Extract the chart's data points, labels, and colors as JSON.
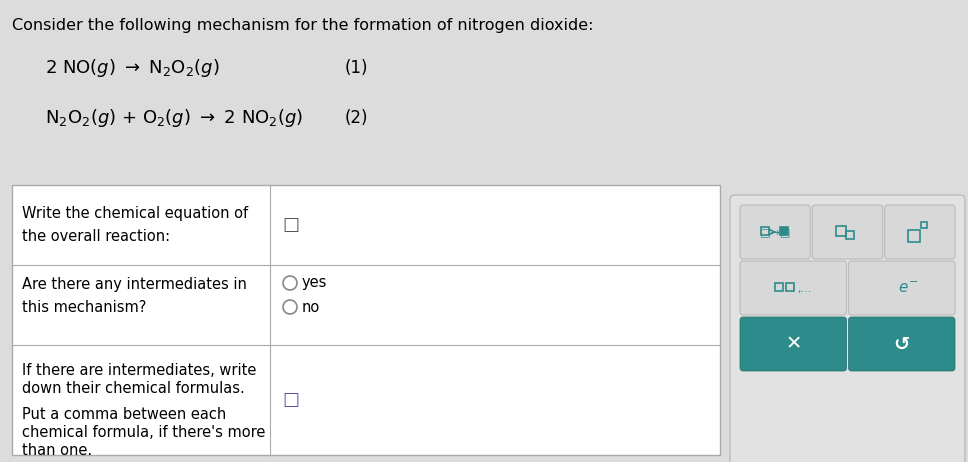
{
  "bg_color": "#dcdcdc",
  "title": "Consider the following mechanism for the formation of nitrogen dioxide:",
  "title_fontsize": 11.5,
  "cell_text_fontsize": 10.5,
  "teal_color": "#2e8b8b",
  "button_color": "#2e8b8b",
  "table_bg": "#f5f5f5",
  "panel_bg": "#e0e0e0",
  "button_bg": "#d0d0d0",
  "eq1": "2 NO($\\it{g}$) $\\rightarrow$ N$_2$O$_2$($\\it{g}$)",
  "eq2": "N$_2$O$_2$($\\it{g}$) + O$_2$($\\it{g}$) $\\rightarrow$ 2 NO$_2$($\\it{g}$)",
  "eq1_label": "(1)",
  "eq2_label": "(2)",
  "row1_label": "Write the chemical equation of\nthe overall reaction:",
  "row2_label": "Are there any intermediates in\nthis mechanism?",
  "row3_label": "If there are intermediates, write\ndown their chemical formulas.\n\nPut a comma between each\nchemical formula, if there's more\nthan one."
}
